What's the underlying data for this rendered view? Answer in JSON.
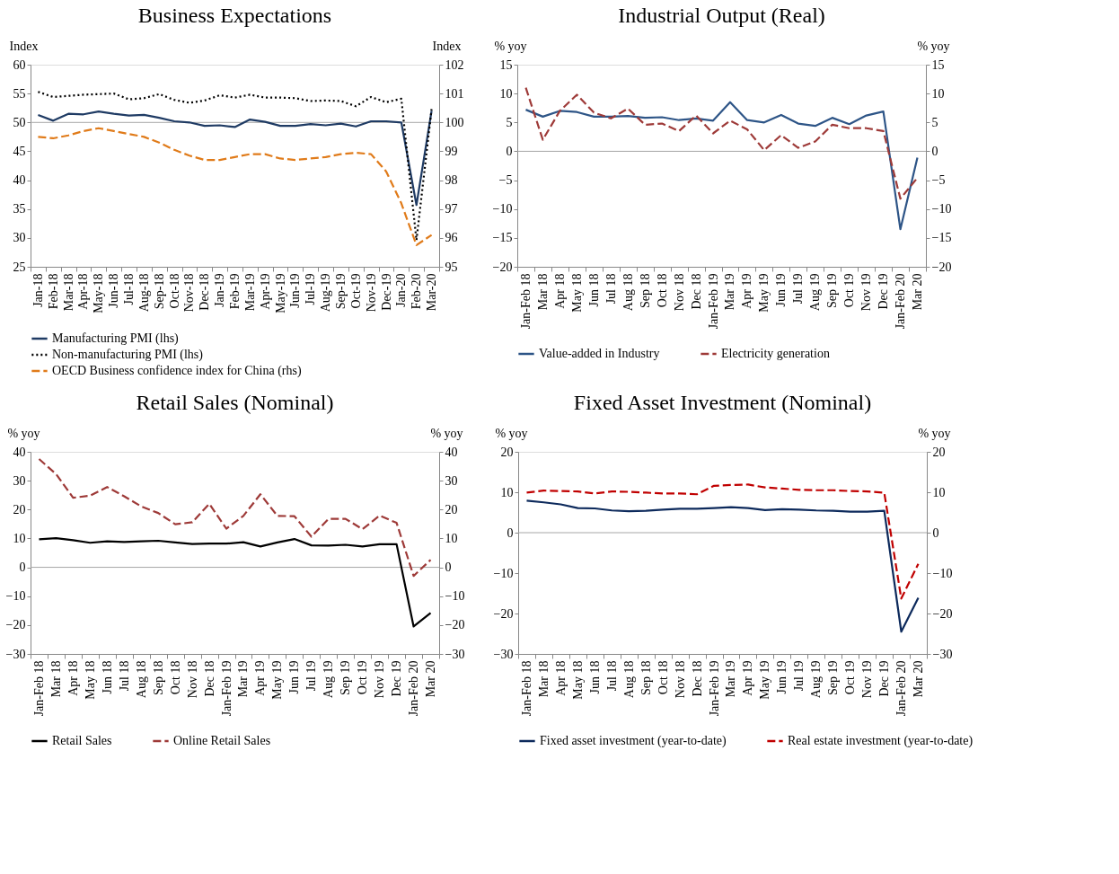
{
  "chart_data": [
    {
      "type": "line",
      "title": "Business Expectations",
      "ylabel": "Index",
      "y2label": "Index",
      "categories": [
        "Jan-18",
        "Feb-18",
        "Mar-18",
        "Apr-18",
        "May-18",
        "Jun-18",
        "Jul-18",
        "Aug-18",
        "Sep-18",
        "Oct-18",
        "Nov-18",
        "Dec-18",
        "Jan-19",
        "Feb-19",
        "Mar-19",
        "Apr-19",
        "May-19",
        "Jun-19",
        "Jul-19",
        "Aug-19",
        "Sep-19",
        "Oct-19",
        "Nov-19",
        "Dec-19",
        "Jan-20",
        "Feb-20",
        "Mar-20"
      ],
      "series": [
        {
          "name": "Manufacturing PMI (lhs)",
          "color": "#1f3b64",
          "line_style": "solid",
          "values": [
            51.3,
            50.3,
            51.5,
            51.4,
            51.9,
            51.5,
            51.2,
            51.3,
            50.8,
            50.2,
            50.0,
            49.4,
            49.5,
            49.2,
            50.5,
            50.1,
            49.4,
            49.4,
            49.7,
            49.5,
            49.8,
            49.3,
            50.2,
            50.2,
            50.0,
            35.7,
            52.0
          ]
        },
        {
          "name": "Non-manufacturing PMI (lhs)",
          "color": "#000000",
          "line_style": "dotted",
          "values": [
            55.3,
            54.4,
            54.6,
            54.8,
            54.9,
            55.0,
            54.0,
            54.2,
            54.9,
            53.9,
            53.4,
            53.8,
            54.7,
            54.3,
            54.8,
            54.3,
            54.3,
            54.2,
            53.7,
            53.8,
            53.7,
            52.8,
            54.4,
            53.5,
            54.1,
            29.6,
            52.3
          ]
        },
        {
          "name": "OECD Business confidence index for China (rhs)",
          "color": "#e07b1a",
          "line_style": "dashed",
          "axis": "y2",
          "values": [
            99.5,
            99.45,
            99.55,
            99.7,
            99.8,
            99.7,
            99.6,
            99.5,
            99.3,
            99.05,
            98.85,
            98.7,
            98.7,
            98.8,
            98.9,
            98.9,
            98.75,
            98.7,
            98.75,
            98.8,
            98.9,
            98.95,
            98.9,
            98.3,
            97.2,
            95.75,
            96.1
          ]
        }
      ],
      "ylim": [
        25,
        60
      ],
      "yticks": [
        25,
        30,
        35,
        40,
        45,
        50,
        55,
        60
      ],
      "y2lim": [
        95,
        102
      ],
      "y2ticks": [
        95,
        96,
        97,
        98,
        99,
        100,
        101,
        102
      ],
      "ref_lines": [
        {
          "axis": "y",
          "value": 50,
          "color": "#a6a6a6"
        }
      ],
      "legend": "bottom"
    },
    {
      "type": "line",
      "title": "Industrial Output (Real)",
      "ylabel": "% yoy",
      "y2label": "% yoy",
      "categories": [
        "Jan-Feb 18",
        "Mar 18",
        "Apr 18",
        "May 18",
        "Jun 18",
        "Jul 18",
        "Aug 18",
        "Sep 18",
        "Oct 18",
        "Nov 18",
        "Dec 18",
        "Jan-Feb 19",
        "Mar 19",
        "Apr 19",
        "May 19",
        "Jun 19",
        "Jul 19",
        "Aug 19",
        "Sep 19",
        "Oct 19",
        "Nov 19",
        "Dec 19",
        "Jan-Feb 20",
        "Mar 20"
      ],
      "series": [
        {
          "name": "Value-added in Industry",
          "color": "#2e5587",
          "line_style": "solid",
          "values": [
            7.2,
            6.0,
            7.0,
            6.8,
            6.0,
            6.0,
            6.1,
            5.8,
            5.9,
            5.4,
            5.7,
            5.3,
            8.5,
            5.4,
            5.0,
            6.3,
            4.8,
            4.4,
            5.8,
            4.7,
            6.2,
            6.9,
            -13.5,
            -1.1
          ]
        },
        {
          "name": "Electricity generation",
          "color": "#9e3a38",
          "line_style": "dashed",
          "values": [
            11.0,
            2.0,
            7.0,
            9.8,
            6.7,
            5.7,
            7.4,
            4.6,
            4.8,
            3.5,
            6.2,
            3.1,
            5.3,
            3.8,
            0.2,
            2.8,
            0.6,
            1.7,
            4.6,
            4.0,
            4.0,
            3.5,
            -8.2,
            -4.6
          ]
        }
      ],
      "ylim": [
        -20,
        15
      ],
      "yticks": [
        -20,
        -15,
        -10,
        -5,
        0,
        5,
        10,
        15
      ],
      "y2lim": [
        -20,
        15
      ],
      "y2ticks": [
        -20,
        -15,
        -10,
        -5,
        0,
        5,
        10,
        15
      ],
      "ref_lines": [
        {
          "axis": "y2",
          "value": 0,
          "color": "#a6a6a6"
        }
      ],
      "legend": "bottom"
    },
    {
      "type": "line",
      "title": "Retail Sales (Nominal)",
      "ylabel": "% yoy",
      "y2label": "% yoy",
      "categories": [
        "Jan-Feb 18",
        "Mar 18",
        "Apr 18",
        "May 18",
        "Jun 18",
        "Jul 18",
        "Aug 18",
        "Sep 18",
        "Oct 18",
        "Nov 18",
        "Dec 18",
        "Jan-Feb 19",
        "Mar 19",
        "Apr 19",
        "May 19",
        "Jun 19",
        "Jul 19",
        "Aug 19",
        "Sep 19",
        "Oct 19",
        "Nov 19",
        "Dec 19",
        "Jan-Feb 20",
        "Mar 20"
      ],
      "series": [
        {
          "name": "Retail Sales",
          "color": "#000000",
          "line_style": "solid",
          "values": [
            9.7,
            10.1,
            9.4,
            8.5,
            9.0,
            8.8,
            9.0,
            9.2,
            8.6,
            8.1,
            8.2,
            8.2,
            8.7,
            7.2,
            8.6,
            9.8,
            7.6,
            7.5,
            7.8,
            7.2,
            8.0,
            8.0,
            -20.5,
            -15.8
          ]
        },
        {
          "name": "Online Retail Sales",
          "color": "#9e3a38",
          "line_style": "dashed",
          "values": [
            37.5,
            32.3,
            24.1,
            24.8,
            27.8,
            24.6,
            21.1,
            18.8,
            14.9,
            15.6,
            22.0,
            13.4,
            17.8,
            25.3,
            17.8,
            17.7,
            10.6,
            16.8,
            16.8,
            13.2,
            17.9,
            15.4,
            -3.0,
            2.6
          ]
        }
      ],
      "ylim": [
        -30,
        40
      ],
      "yticks": [
        -30,
        -20,
        -10,
        0,
        10,
        20,
        30,
        40
      ],
      "y2lim": [
        -30,
        40
      ],
      "y2ticks": [
        -30,
        -20,
        -10,
        0,
        10,
        20,
        30,
        40
      ],
      "ref_lines": [
        {
          "axis": "y2",
          "value": 0,
          "color": "#a6a6a6"
        }
      ],
      "legend": "bottom"
    },
    {
      "type": "line",
      "title": "Fixed Asset Investment (Nominal)",
      "ylabel": "% yoy",
      "y2label": "% yoy",
      "categories": [
        "Jan-Feb 18",
        "Mar 18",
        "Apr 18",
        "May 18",
        "Jun 18",
        "Jul 18",
        "Aug 18",
        "Sep 18",
        "Oct 18",
        "Nov 18",
        "Dec 18",
        "Jan-Feb 19",
        "Mar 19",
        "Apr 19",
        "May 19",
        "Jun 19",
        "Jul 19",
        "Aug 19",
        "Sep 19",
        "Oct 19",
        "Nov 19",
        "Dec 19",
        "Jan-Feb 20",
        "Mar 20"
      ],
      "series": [
        {
          "name": "Fixed asset investment (year-to-date)",
          "color": "#0d2a5c",
          "line_style": "solid",
          "values": [
            7.9,
            7.5,
            7.0,
            6.1,
            6.0,
            5.5,
            5.3,
            5.4,
            5.7,
            5.9,
            5.9,
            6.1,
            6.3,
            6.1,
            5.6,
            5.8,
            5.7,
            5.5,
            5.4,
            5.2,
            5.2,
            5.4,
            -24.5,
            -16.1
          ]
        },
        {
          "name": "Real estate investment (year-to-date)",
          "color": "#c00000",
          "line_style": "dashed",
          "values": [
            9.9,
            10.4,
            10.3,
            10.2,
            9.7,
            10.2,
            10.1,
            9.9,
            9.7,
            9.7,
            9.5,
            11.6,
            11.8,
            11.9,
            11.2,
            10.9,
            10.6,
            10.5,
            10.5,
            10.3,
            10.2,
            9.9,
            -16.3,
            -7.7
          ]
        }
      ],
      "ylim": [
        -30,
        20
      ],
      "yticks": [
        -30,
        -20,
        -10,
        0,
        10,
        20
      ],
      "y2lim": [
        -30,
        20
      ],
      "y2ticks": [
        -30,
        -20,
        -10,
        0,
        10,
        20
      ],
      "ref_lines": [
        {
          "axis": "y2",
          "value": 0,
          "color": "#a6a6a6"
        }
      ],
      "legend": "bottom"
    }
  ]
}
